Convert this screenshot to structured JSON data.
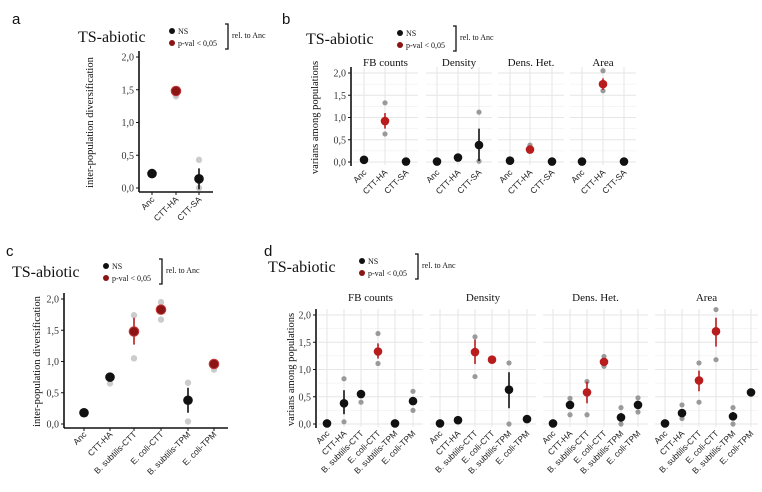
{
  "colors": {
    "ns": "#111111",
    "sig": "#b81c1c",
    "sig_dark": "#8b1515",
    "replicate": "#9a9a9a",
    "replicate_light": "#cccccc",
    "grid": "#e6e6e6"
  },
  "legend": {
    "title": "TS-abiotic",
    "ns_label": "NS",
    "sig_label": "p-val < 0,05",
    "bracket_label": "rel. to Anc"
  },
  "chart_data": [
    {
      "id": "a",
      "panel_letter": "a",
      "type": "scatter",
      "title": "TS-abiotic",
      "ylabel": "inter-population diversification",
      "xlabel": "",
      "ylim": [
        0,
        2
      ],
      "yticks": [
        "0,0",
        "0,5",
        "1,0",
        "1,5",
        "2,0"
      ],
      "ytick_values": [
        0,
        0.5,
        1.0,
        1.5,
        2.0
      ],
      "grid": false,
      "categories": [
        "Anc",
        "CTT-HA",
        "CTT-SA"
      ],
      "facets": [
        {
          "name": "",
          "points": [
            {
              "category": "Anc",
              "mean": 0.22,
              "low": 0.22,
              "high": 0.22,
              "sig": false,
              "reps": []
            },
            {
              "category": "CTT-HA",
              "mean": 1.48,
              "low": 1.45,
              "high": 1.51,
              "sig": true,
              "reps": [
                1.4,
                1.5
              ]
            },
            {
              "category": "CTT-SA",
              "mean": 0.14,
              "low": -0.02,
              "high": 0.3,
              "sig": false,
              "reps": [
                0.43,
                0.0
              ]
            }
          ]
        }
      ]
    },
    {
      "id": "b",
      "panel_letter": "b",
      "type": "scatter",
      "title": "TS-abiotic",
      "ylabel": "varians among populations",
      "xlabel": "",
      "ylim": [
        0,
        2
      ],
      "yticks": [
        "0,0",
        "0,5",
        "1,0",
        "1,5",
        "2,0"
      ],
      "ytick_values": [
        0,
        0.5,
        1.0,
        1.5,
        2.0
      ],
      "grid": true,
      "categories": [
        "Anc",
        "CTT-HA",
        "CTT-SA"
      ],
      "facets": [
        {
          "name": "FB counts",
          "points": [
            {
              "category": "Anc",
              "mean": 0.05,
              "low": 0.05,
              "high": 0.05,
              "sig": false,
              "reps": []
            },
            {
              "category": "CTT-HA",
              "mean": 0.92,
              "low": 0.75,
              "high": 1.1,
              "sig": true,
              "reps": [
                1.33,
                0.63
              ]
            },
            {
              "category": "CTT-SA",
              "mean": 0.01,
              "low": 0.01,
              "high": 0.01,
              "sig": false,
              "reps": []
            }
          ]
        },
        {
          "name": "Density",
          "points": [
            {
              "category": "Anc",
              "mean": 0.01,
              "low": 0.01,
              "high": 0.01,
              "sig": false,
              "reps": []
            },
            {
              "category": "CTT-HA",
              "mean": 0.1,
              "low": 0.1,
              "high": 0.1,
              "sig": false,
              "reps": []
            },
            {
              "category": "CTT-SA",
              "mean": 0.38,
              "low": 0.02,
              "high": 0.75,
              "sig": false,
              "reps": [
                1.12,
                0.02
              ]
            }
          ]
        },
        {
          "name": "Dens. Het.",
          "points": [
            {
              "category": "Anc",
              "mean": 0.03,
              "low": 0.03,
              "high": 0.03,
              "sig": false,
              "reps": []
            },
            {
              "category": "CTT-HA",
              "mean": 0.28,
              "low": 0.22,
              "high": 0.36,
              "sig": true,
              "reps": [
                0.38
              ]
            },
            {
              "category": "CTT-SA",
              "mean": 0.01,
              "low": 0.01,
              "high": 0.01,
              "sig": false,
              "reps": []
            }
          ]
        },
        {
          "name": "Area",
          "points": [
            {
              "category": "Anc",
              "mean": 0.01,
              "low": 0.01,
              "high": 0.01,
              "sig": false,
              "reps": []
            },
            {
              "category": "CTT-HA",
              "mean": 1.75,
              "low": 1.62,
              "high": 1.88,
              "sig": true,
              "reps": [
                2.05,
                1.6
              ]
            },
            {
              "category": "CTT-SA",
              "mean": 0.01,
              "low": 0.01,
              "high": 0.01,
              "sig": false,
              "reps": []
            }
          ]
        }
      ]
    },
    {
      "id": "c",
      "panel_letter": "c",
      "type": "scatter",
      "title": "TS-abiotic",
      "ylabel": "inter-population diversification",
      "xlabel": "",
      "ylim": [
        0,
        2
      ],
      "yticks": [
        "0,0",
        "0,5",
        "1,0",
        "1,5",
        "2,0"
      ],
      "ytick_values": [
        0,
        0.5,
        1.0,
        1.5,
        2.0
      ],
      "grid": false,
      "categories": [
        "Anc",
        "CTT-HA",
        "B. subtilis-CTT",
        "E. coli-CTT",
        "B. subtilis-TPM",
        "E. coli-TPM"
      ],
      "facets": [
        {
          "name": "",
          "points": [
            {
              "category": "Anc",
              "mean": 0.18,
              "low": 0.18,
              "high": 0.18,
              "sig": false,
              "reps": []
            },
            {
              "category": "CTT-HA",
              "mean": 0.75,
              "low": 0.75,
              "high": 0.75,
              "sig": false,
              "reps": [
                0.65
              ]
            },
            {
              "category": "B. subtilis-CTT",
              "mean": 1.48,
              "low": 1.27,
              "high": 1.7,
              "sig": true,
              "reps": [
                1.74,
                1.05
              ]
            },
            {
              "category": "E. coli-CTT",
              "mean": 1.83,
              "low": 1.8,
              "high": 1.86,
              "sig": true,
              "reps": [
                1.95,
                1.67
              ]
            },
            {
              "category": "B. subtilis-TPM",
              "mean": 0.38,
              "low": 0.18,
              "high": 0.58,
              "sig": false,
              "reps": [
                0.66,
                0.04
              ]
            },
            {
              "category": "E. coli-TPM",
              "mean": 0.96,
              "low": 0.96,
              "high": 0.96,
              "sig": true,
              "reps": [
                0.87
              ]
            }
          ]
        }
      ]
    },
    {
      "id": "d",
      "panel_letter": "d",
      "type": "scatter",
      "title": "TS-abiotic",
      "ylabel": "varians among populations",
      "xlabel": "",
      "ylim": [
        0,
        2
      ],
      "yticks": [
        "0,0",
        "0,5",
        "1,0",
        "1,5",
        "2,0"
      ],
      "ytick_values": [
        0,
        0.5,
        1.0,
        1.5,
        2.0
      ],
      "grid": true,
      "categories": [
        "Anc",
        "CTT-HA",
        "B. subtilis-CTT",
        "E. coli-CTT",
        "B. subtilis-TPM",
        "E. coli-TPM"
      ],
      "facets": [
        {
          "name": "FB counts",
          "points": [
            {
              "category": "Anc",
              "mean": 0.01,
              "low": 0.01,
              "high": 0.01,
              "sig": false,
              "reps": []
            },
            {
              "category": "CTT-HA",
              "mean": 0.38,
              "low": 0.18,
              "high": 0.62,
              "sig": false,
              "reps": [
                0.83,
                0.04
              ]
            },
            {
              "category": "B. subtilis-CTT",
              "mean": 0.55,
              "low": 0.48,
              "high": 0.62,
              "sig": false,
              "reps": [
                0.4
              ]
            },
            {
              "category": "E. coli-CTT",
              "mean": 1.33,
              "low": 1.2,
              "high": 1.48,
              "sig": true,
              "reps": [
                1.66,
                1.11
              ]
            },
            {
              "category": "B. subtilis-TPM",
              "mean": 0.01,
              "low": 0.01,
              "high": 0.01,
              "sig": false,
              "reps": []
            },
            {
              "category": "E. coli-TPM",
              "mean": 0.42,
              "low": 0.36,
              "high": 0.48,
              "sig": false,
              "reps": [
                0.6,
                0.25
              ]
            }
          ]
        },
        {
          "name": "Density",
          "points": [
            {
              "category": "Anc",
              "mean": 0.01,
              "low": 0.01,
              "high": 0.01,
              "sig": false,
              "reps": []
            },
            {
              "category": "CTT-HA",
              "mean": 0.07,
              "low": 0.07,
              "high": 0.07,
              "sig": false,
              "reps": []
            },
            {
              "category": "B. subtilis-CTT",
              "mean": 1.32,
              "low": 1.1,
              "high": 1.55,
              "sig": true,
              "reps": [
                1.6,
                0.87
              ]
            },
            {
              "category": "E. coli-CTT",
              "mean": 1.18,
              "low": 1.18,
              "high": 1.18,
              "sig": true,
              "reps": []
            },
            {
              "category": "B. subtilis-TPM",
              "mean": 0.63,
              "low": 0.29,
              "high": 0.95,
              "sig": false,
              "reps": [
                1.12,
                0.0
              ]
            },
            {
              "category": "E. coli-TPM",
              "mean": 0.09,
              "low": 0.09,
              "high": 0.09,
              "sig": false,
              "reps": []
            }
          ]
        },
        {
          "name": "Dens. Het.",
          "points": [
            {
              "category": "Anc",
              "mean": 0.01,
              "low": 0.01,
              "high": 0.01,
              "sig": false,
              "reps": []
            },
            {
              "category": "CTT-HA",
              "mean": 0.35,
              "low": 0.3,
              "high": 0.42,
              "sig": false,
              "reps": [
                0.47,
                0.17
              ]
            },
            {
              "category": "B. subtilis-CTT",
              "mean": 0.58,
              "low": 0.38,
              "high": 0.78,
              "sig": true,
              "reps": [
                0.78,
                0.17
              ]
            },
            {
              "category": "E. coli-CTT",
              "mean": 1.14,
              "low": 1.08,
              "high": 1.2,
              "sig": true,
              "reps": [
                1.24,
                1.06
              ]
            },
            {
              "category": "B. subtilis-TPM",
              "mean": 0.12,
              "low": 0.05,
              "high": 0.2,
              "sig": false,
              "reps": [
                0.3,
                0.0
              ]
            },
            {
              "category": "E. coli-TPM",
              "mean": 0.35,
              "low": 0.3,
              "high": 0.42,
              "sig": false,
              "reps": [
                0.48,
                0.22
              ]
            }
          ]
        },
        {
          "name": "Area",
          "points": [
            {
              "category": "Anc",
              "mean": 0.01,
              "low": 0.01,
              "high": 0.01,
              "sig": false,
              "reps": []
            },
            {
              "category": "CTT-HA",
              "mean": 0.2,
              "low": 0.13,
              "high": 0.27,
              "sig": false,
              "reps": [
                0.35,
                0.1
              ]
            },
            {
              "category": "B. subtilis-CTT",
              "mean": 0.8,
              "low": 0.6,
              "high": 0.98,
              "sig": true,
              "reps": [
                1.12,
                0.4
              ]
            },
            {
              "category": "E. coli-CTT",
              "mean": 1.7,
              "low": 1.42,
              "high": 1.95,
              "sig": true,
              "reps": [
                2.1,
                1.18
              ]
            },
            {
              "category": "B. subtilis-TPM",
              "mean": 0.14,
              "low": 0.07,
              "high": 0.22,
              "sig": false,
              "reps": [
                0.3,
                0.0
              ]
            },
            {
              "category": "E. coli-TPM",
              "mean": 0.58,
              "low": 0.58,
              "high": 0.58,
              "sig": false,
              "reps": []
            }
          ]
        }
      ]
    }
  ]
}
